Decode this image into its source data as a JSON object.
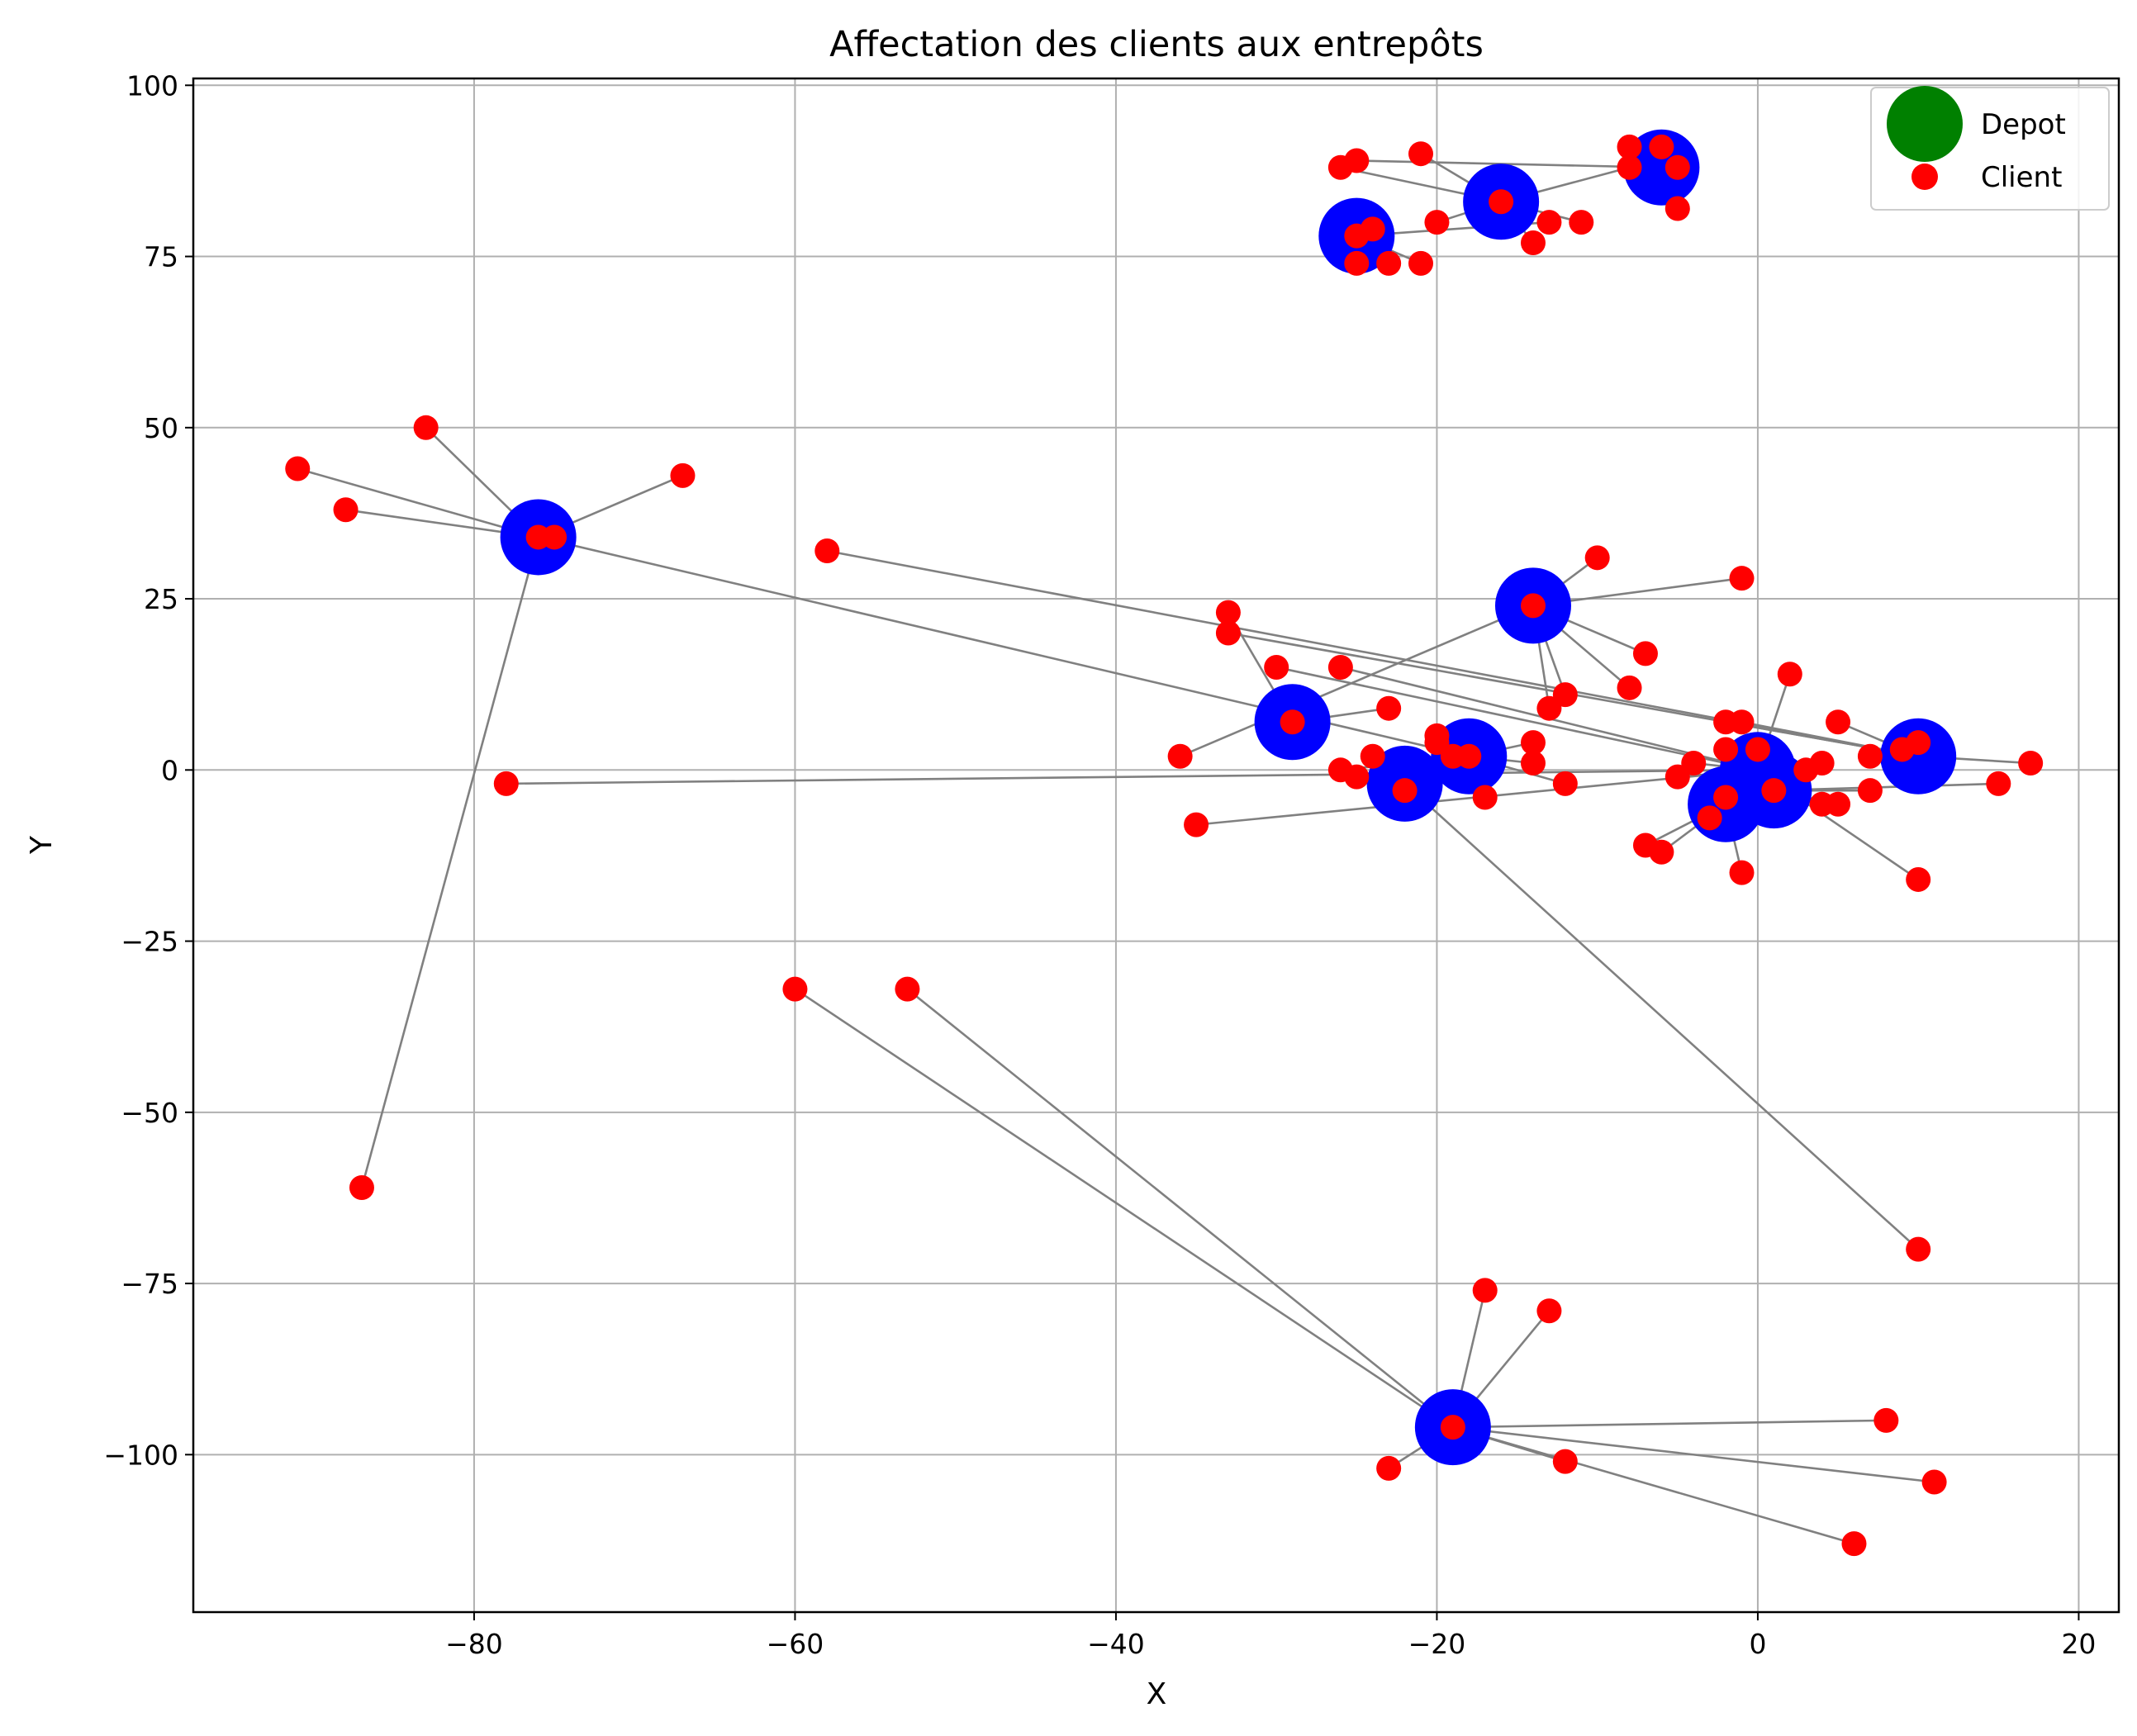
{
  "chart_data": {
    "type": "scatter",
    "title": "Affectation des clients aux entrepôts",
    "xlabel": "X",
    "ylabel": "Y",
    "xlim": [
      -97.5,
      22.5
    ],
    "ylim": [
      -123,
      101
    ],
    "xticks": [
      -80,
      -60,
      -40,
      -20,
      0,
      20
    ],
    "yticks": [
      -100,
      -75,
      -50,
      -25,
      0,
      25,
      50,
      75,
      100
    ],
    "grid": true,
    "legend_position": "top-right",
    "colors": {
      "depot": "#008000",
      "warehouse": "#0000ff",
      "client": "#ff0000",
      "link": "#808080"
    },
    "legend": [
      {
        "label": "Depot",
        "marker": "large-circle",
        "color": "#008000"
      },
      {
        "label": "Client",
        "marker": "small-circle",
        "color": "#ff0000"
      }
    ],
    "warehouses": [
      {
        "id": "W1",
        "x": -76,
        "y": 34
      },
      {
        "id": "W2",
        "x": -25,
        "y": 78
      },
      {
        "id": "W3",
        "x": -16,
        "y": 83
      },
      {
        "id": "W4",
        "x": -6,
        "y": 88
      },
      {
        "id": "W5",
        "x": -14,
        "y": 24
      },
      {
        "id": "W6",
        "x": -29,
        "y": 7
      },
      {
        "id": "W7",
        "x": -18,
        "y": 2
      },
      {
        "id": "W8",
        "x": -22,
        "y": -2
      },
      {
        "id": "W9",
        "x": 0,
        "y": 0
      },
      {
        "id": "W10",
        "x": 1,
        "y": -3
      },
      {
        "id": "W11",
        "x": -2,
        "y": -5
      },
      {
        "id": "W12",
        "x": 10,
        "y": 2
      },
      {
        "id": "W13",
        "x": -19,
        "y": -96
      }
    ],
    "clients": [
      {
        "x": -91,
        "y": 44,
        "w": "W1"
      },
      {
        "x": -88,
        "y": 38,
        "w": "W1"
      },
      {
        "x": -83,
        "y": 50,
        "w": "W1"
      },
      {
        "x": -67,
        "y": 43,
        "w": "W1"
      },
      {
        "x": -87,
        "y": -61,
        "w": "W1"
      },
      {
        "x": -75,
        "y": 34,
        "w": "W1"
      },
      {
        "x": -76,
        "y": 34,
        "w": "W1"
      },
      {
        "x": -18,
        "y": 2,
        "w": "W1"
      },
      {
        "x": -26,
        "y": 88,
        "w": "W3"
      },
      {
        "x": -25,
        "y": 89,
        "w": "W4"
      },
      {
        "x": -21,
        "y": 90,
        "w": "W3"
      },
      {
        "x": -8,
        "y": 91,
        "w": "W4"
      },
      {
        "x": -8,
        "y": 88,
        "w": "W3"
      },
      {
        "x": -6,
        "y": 91,
        "w": "W4"
      },
      {
        "x": -5,
        "y": 88,
        "w": "W4"
      },
      {
        "x": -5,
        "y": 82,
        "w": "W4"
      },
      {
        "x": -16,
        "y": 83,
        "w": "W3"
      },
      {
        "x": -20,
        "y": 80,
        "w": "W3"
      },
      {
        "x": -13,
        "y": 80,
        "w": "W2"
      },
      {
        "x": -11,
        "y": 80,
        "w": "W3"
      },
      {
        "x": -14,
        "y": 77,
        "w": "W3"
      },
      {
        "x": -24,
        "y": 79,
        "w": "W2"
      },
      {
        "x": -25,
        "y": 74,
        "w": "W2"
      },
      {
        "x": -23,
        "y": 74,
        "w": "W2"
      },
      {
        "x": -21,
        "y": 74,
        "w": "W2"
      },
      {
        "x": -25,
        "y": 78,
        "w": "W2"
      },
      {
        "x": -58,
        "y": 32,
        "w": "W12"
      },
      {
        "x": -10,
        "y": 31,
        "w": "W5"
      },
      {
        "x": -1,
        "y": 28,
        "w": "W5"
      },
      {
        "x": -14,
        "y": 24,
        "w": "W5"
      },
      {
        "x": -7,
        "y": 17,
        "w": "W5"
      },
      {
        "x": -8,
        "y": 12,
        "w": "W5"
      },
      {
        "x": -12,
        "y": 11,
        "w": "W5"
      },
      {
        "x": -13,
        "y": 9,
        "w": "W5"
      },
      {
        "x": -36,
        "y": 2,
        "w": "W5"
      },
      {
        "x": -33,
        "y": 23,
        "w": "W6"
      },
      {
        "x": -33,
        "y": 20,
        "w": "W12"
      },
      {
        "x": -30,
        "y": 15,
        "w": "W9"
      },
      {
        "x": -26,
        "y": 15,
        "w": "W9"
      },
      {
        "x": -29,
        "y": 7,
        "w": "W6"
      },
      {
        "x": -23,
        "y": 9,
        "w": "W6"
      },
      {
        "x": -26,
        "y": 0,
        "w": "W7"
      },
      {
        "x": -25,
        "y": -1,
        "w": "W8"
      },
      {
        "x": -24,
        "y": 2,
        "w": "W8"
      },
      {
        "x": -22,
        "y": -3,
        "w": "W8"
      },
      {
        "x": -20,
        "y": 5,
        "w": "W7"
      },
      {
        "x": -20,
        "y": 4,
        "w": "W7"
      },
      {
        "x": -19,
        "y": 2,
        "w": "W7"
      },
      {
        "x": -17,
        "y": -4,
        "w": "W7"
      },
      {
        "x": -14,
        "y": 4,
        "w": "W7"
      },
      {
        "x": -14,
        "y": 1,
        "w": "W7"
      },
      {
        "x": -12,
        "y": -2,
        "w": "W7"
      },
      {
        "x": -35,
        "y": -8,
        "w": "W9"
      },
      {
        "x": -78,
        "y": -2,
        "w": "W9"
      },
      {
        "x": 2,
        "y": 14,
        "w": "W9"
      },
      {
        "x": 5,
        "y": 7,
        "w": "W12"
      },
      {
        "x": -2,
        "y": 7,
        "w": "W12"
      },
      {
        "x": -1,
        "y": 7,
        "w": "W12"
      },
      {
        "x": -2,
        "y": 3,
        "w": "W9"
      },
      {
        "x": 0,
        "y": 3,
        "w": "W9"
      },
      {
        "x": -4,
        "y": 1,
        "w": "W9"
      },
      {
        "x": -5,
        "y": -1,
        "w": "W9"
      },
      {
        "x": -3,
        "y": -7,
        "w": "W11"
      },
      {
        "x": -2,
        "y": -4,
        "w": "W11"
      },
      {
        "x": 1,
        "y": -3,
        "w": "W10"
      },
      {
        "x": 4,
        "y": 1,
        "w": "W10"
      },
      {
        "x": 3,
        "y": 0,
        "w": "W10"
      },
      {
        "x": 4,
        "y": -5,
        "w": "W10"
      },
      {
        "x": 5,
        "y": -5,
        "w": "W10"
      },
      {
        "x": 7,
        "y": -3,
        "w": "W10"
      },
      {
        "x": 7,
        "y": 2,
        "w": "W12"
      },
      {
        "x": 9,
        "y": 3,
        "w": "W12"
      },
      {
        "x": 10,
        "y": 4,
        "w": "W12"
      },
      {
        "x": 17,
        "y": 1,
        "w": "W12"
      },
      {
        "x": 15,
        "y": -2,
        "w": "W10"
      },
      {
        "x": 10,
        "y": -16,
        "w": "W9"
      },
      {
        "x": -7,
        "y": -11,
        "w": "W11"
      },
      {
        "x": -6,
        "y": -12,
        "w": "W11"
      },
      {
        "x": -1,
        "y": -15,
        "w": "W11"
      },
      {
        "x": 10,
        "y": -70,
        "w": "W8"
      },
      {
        "x": -60,
        "y": -32,
        "w": "W13"
      },
      {
        "x": -53,
        "y": -32,
        "w": "W13"
      },
      {
        "x": -17,
        "y": -76,
        "w": "W13"
      },
      {
        "x": -13,
        "y": -79,
        "w": "W13"
      },
      {
        "x": -19,
        "y": -96,
        "w": "W13"
      },
      {
        "x": 8,
        "y": -95,
        "w": "W13"
      },
      {
        "x": -23,
        "y": -102,
        "w": "W13"
      },
      {
        "x": -12,
        "y": -101,
        "w": "W13"
      },
      {
        "x": 11,
        "y": -104,
        "w": "W13"
      },
      {
        "x": 6,
        "y": -113,
        "w": "W13"
      }
    ]
  }
}
